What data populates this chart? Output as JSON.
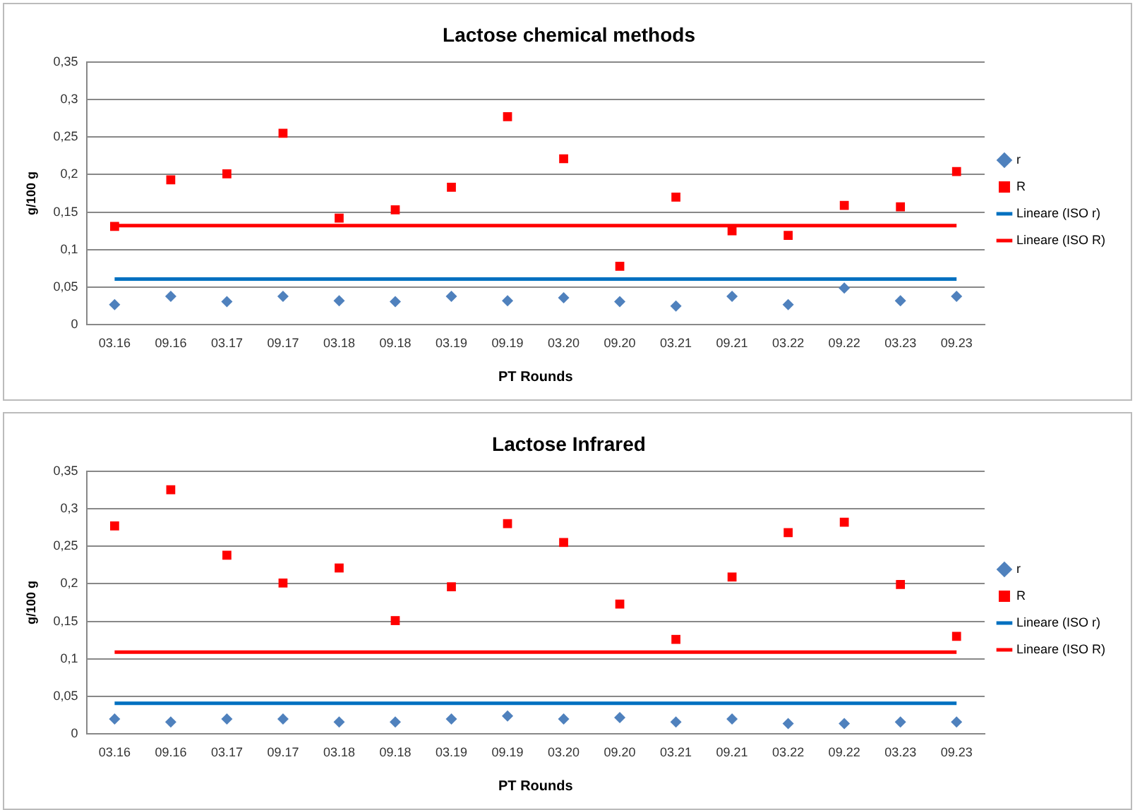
{
  "chart_data": [
    {
      "type": "scatter",
      "title": "Lactose chemical methods",
      "xlabel": "PT Rounds",
      "ylabel": "g/100 g",
      "categories": [
        "03.16",
        "09.16",
        "03.17",
        "09.17",
        "03.18",
        "09.18",
        "03.19",
        "09.19",
        "03.20",
        "09.20",
        "03.21",
        "09.21",
        "03.22",
        "09.22",
        "03.23",
        "09.23"
      ],
      "series": [
        {
          "name": "r",
          "color": "#4f81bd",
          "marker": "diamond",
          "values": [
            0.027,
            0.038,
            0.031,
            0.038,
            0.032,
            0.031,
            0.038,
            0.032,
            0.036,
            0.031,
            0.025,
            0.038,
            0.027,
            0.049,
            0.032,
            0.038
          ]
        },
        {
          "name": "R",
          "color": "#ff0000",
          "marker": "square",
          "values": [
            0.131,
            0.193,
            0.201,
            0.255,
            0.142,
            0.153,
            0.183,
            0.277,
            0.221,
            0.078,
            0.17,
            0.125,
            0.119,
            0.159,
            0.157,
            0.204
          ]
        },
        {
          "name": "Lineare (ISO r)",
          "type": "line",
          "color": "#0070c0",
          "marker": "none",
          "line_style": "solid",
          "values": [
            0.061,
            0.061,
            0.061,
            0.061,
            0.061,
            0.061,
            0.061,
            0.061,
            0.061,
            0.061,
            0.061,
            0.061,
            0.061,
            0.061,
            0.061,
            0.061
          ]
        },
        {
          "name": "Lineare (ISO R)",
          "type": "line",
          "color": "#ff0000",
          "marker": "none",
          "line_style": "solid",
          "values": [
            0.132,
            0.132,
            0.132,
            0.132,
            0.132,
            0.132,
            0.132,
            0.132,
            0.132,
            0.132,
            0.132,
            0.132,
            0.132,
            0.132,
            0.132,
            0.132
          ]
        }
      ],
      "ylim": [
        0,
        0.35
      ],
      "yticks": [
        0,
        {
          "value": 0.05,
          "label": "0,05"
        },
        {
          "value": 0.1,
          "label": "0,1"
        },
        {
          "value": 0.15,
          "label": "0,15"
        },
        {
          "value": 0.2,
          "label": "0,2"
        },
        {
          "value": 0.25,
          "label": "0,25"
        },
        {
          "value": 0.3,
          "label": "0,3"
        },
        {
          "value": 0.35,
          "label": "0,35"
        }
      ],
      "grid": "y",
      "legend": "right"
    },
    {
      "type": "scatter",
      "title": "Lactose Infrared",
      "xlabel": "PT Rounds",
      "ylabel": "g/100 g",
      "categories": [
        "03.16",
        "09.16",
        "03.17",
        "09.17",
        "03.18",
        "09.18",
        "03.19",
        "09.19",
        "03.20",
        "09.20",
        "03.21",
        "09.21",
        "03.22",
        "09.22",
        "03.23",
        "09.23"
      ],
      "series": [
        {
          "name": "r",
          "color": "#4f81bd",
          "marker": "diamond",
          "values": [
            0.02,
            0.016,
            0.02,
            0.02,
            0.016,
            0.016,
            0.02,
            0.024,
            0.02,
            0.022,
            0.016,
            0.02,
            0.014,
            0.014,
            0.016,
            0.016
          ]
        },
        {
          "name": "R",
          "color": "#ff0000",
          "marker": "square",
          "values": [
            0.277,
            0.325,
            0.238,
            0.201,
            0.221,
            0.151,
            0.196,
            0.28,
            0.255,
            0.173,
            0.126,
            0.209,
            0.268,
            0.282,
            0.199,
            0.13
          ]
        },
        {
          "name": "Lineare (ISO r)",
          "type": "line",
          "color": "#0070c0",
          "marker": "none",
          "line_style": "solid",
          "values": [
            0.041,
            0.041,
            0.041,
            0.041,
            0.041,
            0.041,
            0.041,
            0.041,
            0.041,
            0.041,
            0.041,
            0.041,
            0.041,
            0.041,
            0.041,
            0.041
          ]
        },
        {
          "name": "Lineare (ISO R)",
          "type": "line",
          "color": "#ff0000",
          "marker": "none",
          "line_style": "solid",
          "values": [
            0.109,
            0.109,
            0.109,
            0.109,
            0.109,
            0.109,
            0.109,
            0.109,
            0.109,
            0.109,
            0.109,
            0.109,
            0.109,
            0.109,
            0.109,
            0.109
          ]
        }
      ],
      "ylim": [
        0,
        0.35
      ],
      "yticks": [
        0,
        {
          "value": 0.05,
          "label": "0,05"
        },
        {
          "value": 0.1,
          "label": "0,1"
        },
        {
          "value": 0.15,
          "label": "0,15"
        },
        {
          "value": 0.2,
          "label": "0,2"
        },
        {
          "value": 0.25,
          "label": "0,25"
        },
        {
          "value": 0.3,
          "label": "0,3"
        },
        {
          "value": 0.35,
          "label": "0,35"
        }
      ],
      "grid": "y",
      "legend": "right"
    }
  ]
}
